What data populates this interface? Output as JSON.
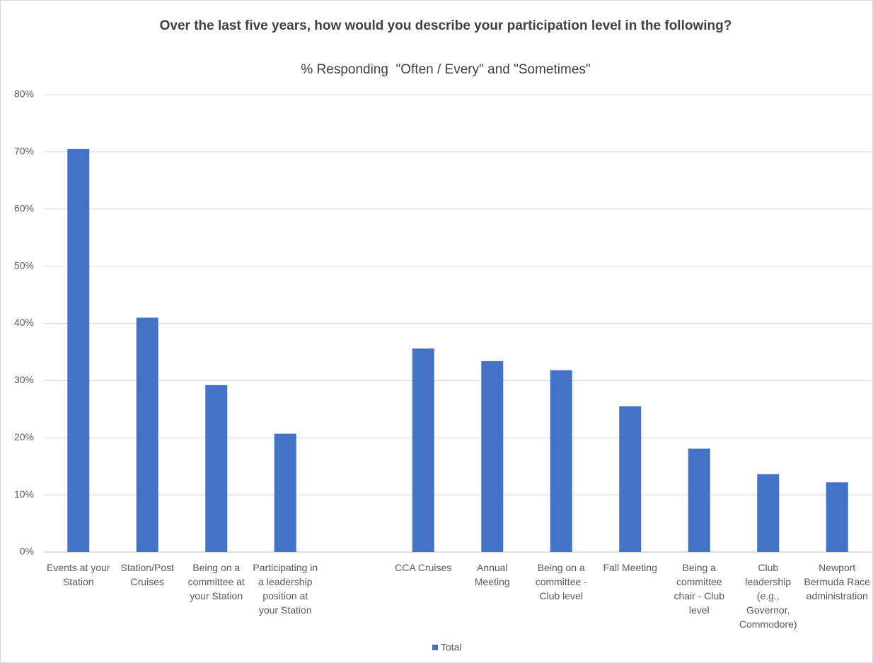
{
  "chart_data": {
    "type": "bar",
    "title": "Over the last five years, how would you describe your participation level in the following?",
    "subtitle": "% Responding  \"Often / Every\" and \"Sometimes\"",
    "categories": [
      "Events at your Station",
      "Station/Post Cruises",
      "Being on a committee at your Station",
      "Participating in a leadership position at your Station",
      null,
      "CCA Cruises",
      "Annual Meeting",
      "Being on a committee - Club level",
      "Fall Meeting",
      "Being a committee chair - Club level",
      "Club leadership (e.g., Governor, Commodore)",
      "Newport Bermuda Race administration"
    ],
    "series": [
      {
        "name": "Total",
        "color": "#4472c4",
        "values": [
          70.5,
          41,
          29.2,
          20.7,
          null,
          35.6,
          33.4,
          31.8,
          25.5,
          18.1,
          13.6,
          12.2
        ]
      }
    ],
    "ylim": [
      0,
      80
    ],
    "yticks": [
      {
        "value": 0,
        "label": "0%"
      },
      {
        "value": 10,
        "label": "10%"
      },
      {
        "value": 20,
        "label": "20%"
      },
      {
        "value": 30,
        "label": "30%"
      },
      {
        "value": 40,
        "label": "40%"
      },
      {
        "value": 50,
        "label": "50%"
      },
      {
        "value": 60,
        "label": "60%"
      },
      {
        "value": 70,
        "label": "70%"
      },
      {
        "value": 80,
        "label": "80%"
      }
    ],
    "grid": true,
    "legend": "bottom"
  }
}
